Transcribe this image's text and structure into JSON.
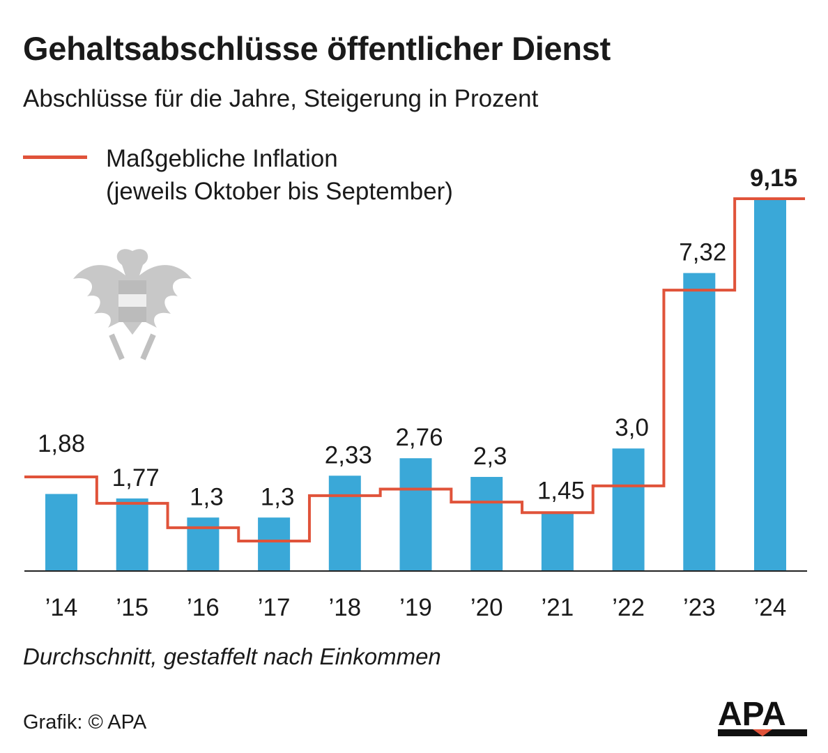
{
  "title": "Gehaltsabschlüsse öffentlicher Dienst",
  "subtitle": "Abschlüsse für die Jahre, Steigerung in Prozent",
  "legend": {
    "line_label_1": "Maßgebliche Inflation",
    "line_label_2": "(jeweils Oktober bis September)"
  },
  "note": "Durchschnitt, gestaffelt nach Einkommen",
  "credit": "Grafik: © APA",
  "logo_text": "APA",
  "colors": {
    "bars": "#3aa8d8",
    "inflation_line": "#e0533a"
  },
  "chart_data": {
    "type": "bar",
    "categories": [
      "’14",
      "’15",
      "’16",
      "’17",
      "’18",
      "’19",
      "’20",
      "’21",
      "’22",
      "’23",
      "’24"
    ],
    "series": [
      {
        "values": [
          1.88,
          1.77,
          1.3,
          1.3,
          2.33,
          2.76,
          2.3,
          1.45,
          3.0,
          7.32,
          9.15
        ],
        "labels": [
          "1,88",
          "1,77",
          "1,3",
          "1,3",
          "2,33",
          "2,76",
          "2,3",
          "1,45",
          "3,0",
          "7,32",
          "9,15"
        ]
      },
      {
        "name": "Maßgebliche Inflation",
        "type": "step-line",
        "values": [
          2.3,
          1.65,
          1.05,
          0.72,
          1.84,
          2.0,
          1.68,
          1.42,
          2.08,
          6.9,
          9.15
        ]
      }
    ],
    "ylim": [
      0,
      9.15
    ],
    "grid": false,
    "legend_position": "top-left"
  }
}
